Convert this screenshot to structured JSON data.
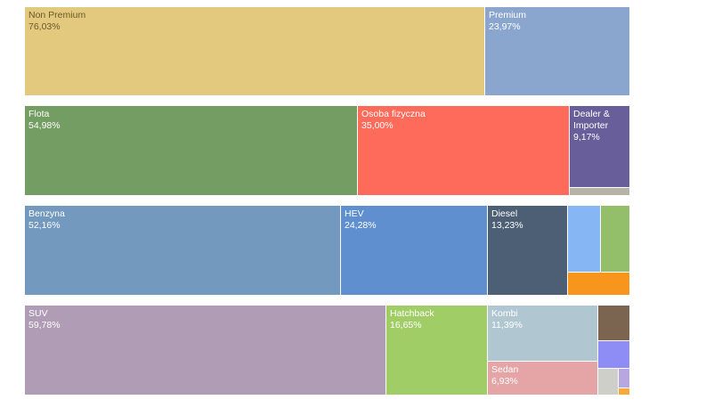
{
  "chart_data": {
    "type": "treemap",
    "rows": [
      {
        "name": "row-premium",
        "tiles": [
          {
            "label": "Non Premium",
            "value": "76,03%",
            "color": "#e2c97e",
            "text_color": "#6b5a2c"
          },
          {
            "label": "Premium",
            "value": "23,97%",
            "color": "#8aa6cf",
            "text_color": "#ffffff"
          }
        ]
      },
      {
        "name": "row-client",
        "tiles": [
          {
            "label": "Flota",
            "value": "54,98%",
            "color": "#739d62",
            "text_color": "#ffffff"
          },
          {
            "label": "Osoba fizyczna",
            "value": "35,00%",
            "color": "#ff6b5a",
            "text_color": "#ffffff"
          },
          {
            "label": "Dealer &\nImporter",
            "value": "9,17%",
            "color": "#675e9a",
            "text_color": "#ffffff"
          },
          {
            "label": "",
            "value": "",
            "color": "#b5b3a4",
            "text_color": "#ffffff"
          }
        ]
      },
      {
        "name": "row-fuel",
        "tiles": [
          {
            "label": "Benzyna",
            "value": "52,16%",
            "color": "#7399bf",
            "text_color": "#ffffff"
          },
          {
            "label": "HEV",
            "value": "24,28%",
            "color": "#5f8fce",
            "text_color": "#ffffff"
          },
          {
            "label": "Diesel",
            "value": "13,23%",
            "color": "#4c5f75",
            "text_color": "#ffffff"
          },
          {
            "label": "",
            "value": "",
            "color": "#86b6f3",
            "text_color": "#ffffff"
          },
          {
            "label": "",
            "value": "",
            "color": "#93bf6b",
            "text_color": "#ffffff"
          },
          {
            "label": "",
            "value": "",
            "color": "#f7951d",
            "text_color": "#ffffff"
          }
        ]
      },
      {
        "name": "row-body",
        "tiles": [
          {
            "label": "SUV",
            "value": "59,78%",
            "color": "#b09cb5",
            "text_color": "#ffffff"
          },
          {
            "label": "Hatchback",
            "value": "16,65%",
            "color": "#a1cd66",
            "text_color": "#ffffff"
          },
          {
            "label": "Kombi",
            "value": "11,39%",
            "color": "#b0c7d2",
            "text_color": "#ffffff"
          },
          {
            "label": "Sedan",
            "value": "6,93%",
            "color": "#e5a4a6",
            "text_color": "#ffffff"
          },
          {
            "label": "",
            "value": "",
            "color": "#7b6550",
            "text_color": "#ffffff"
          },
          {
            "label": "",
            "value": "",
            "color": "#8d8df5",
            "text_color": "#ffffff"
          },
          {
            "label": "",
            "value": "",
            "color": "#cfcfca",
            "text_color": "#ffffff"
          },
          {
            "label": "",
            "value": "",
            "color": "#b7a6e0",
            "text_color": "#ffffff"
          },
          {
            "label": "",
            "value": "",
            "color": "#f7a93a",
            "text_color": "#ffffff"
          }
        ]
      }
    ]
  }
}
